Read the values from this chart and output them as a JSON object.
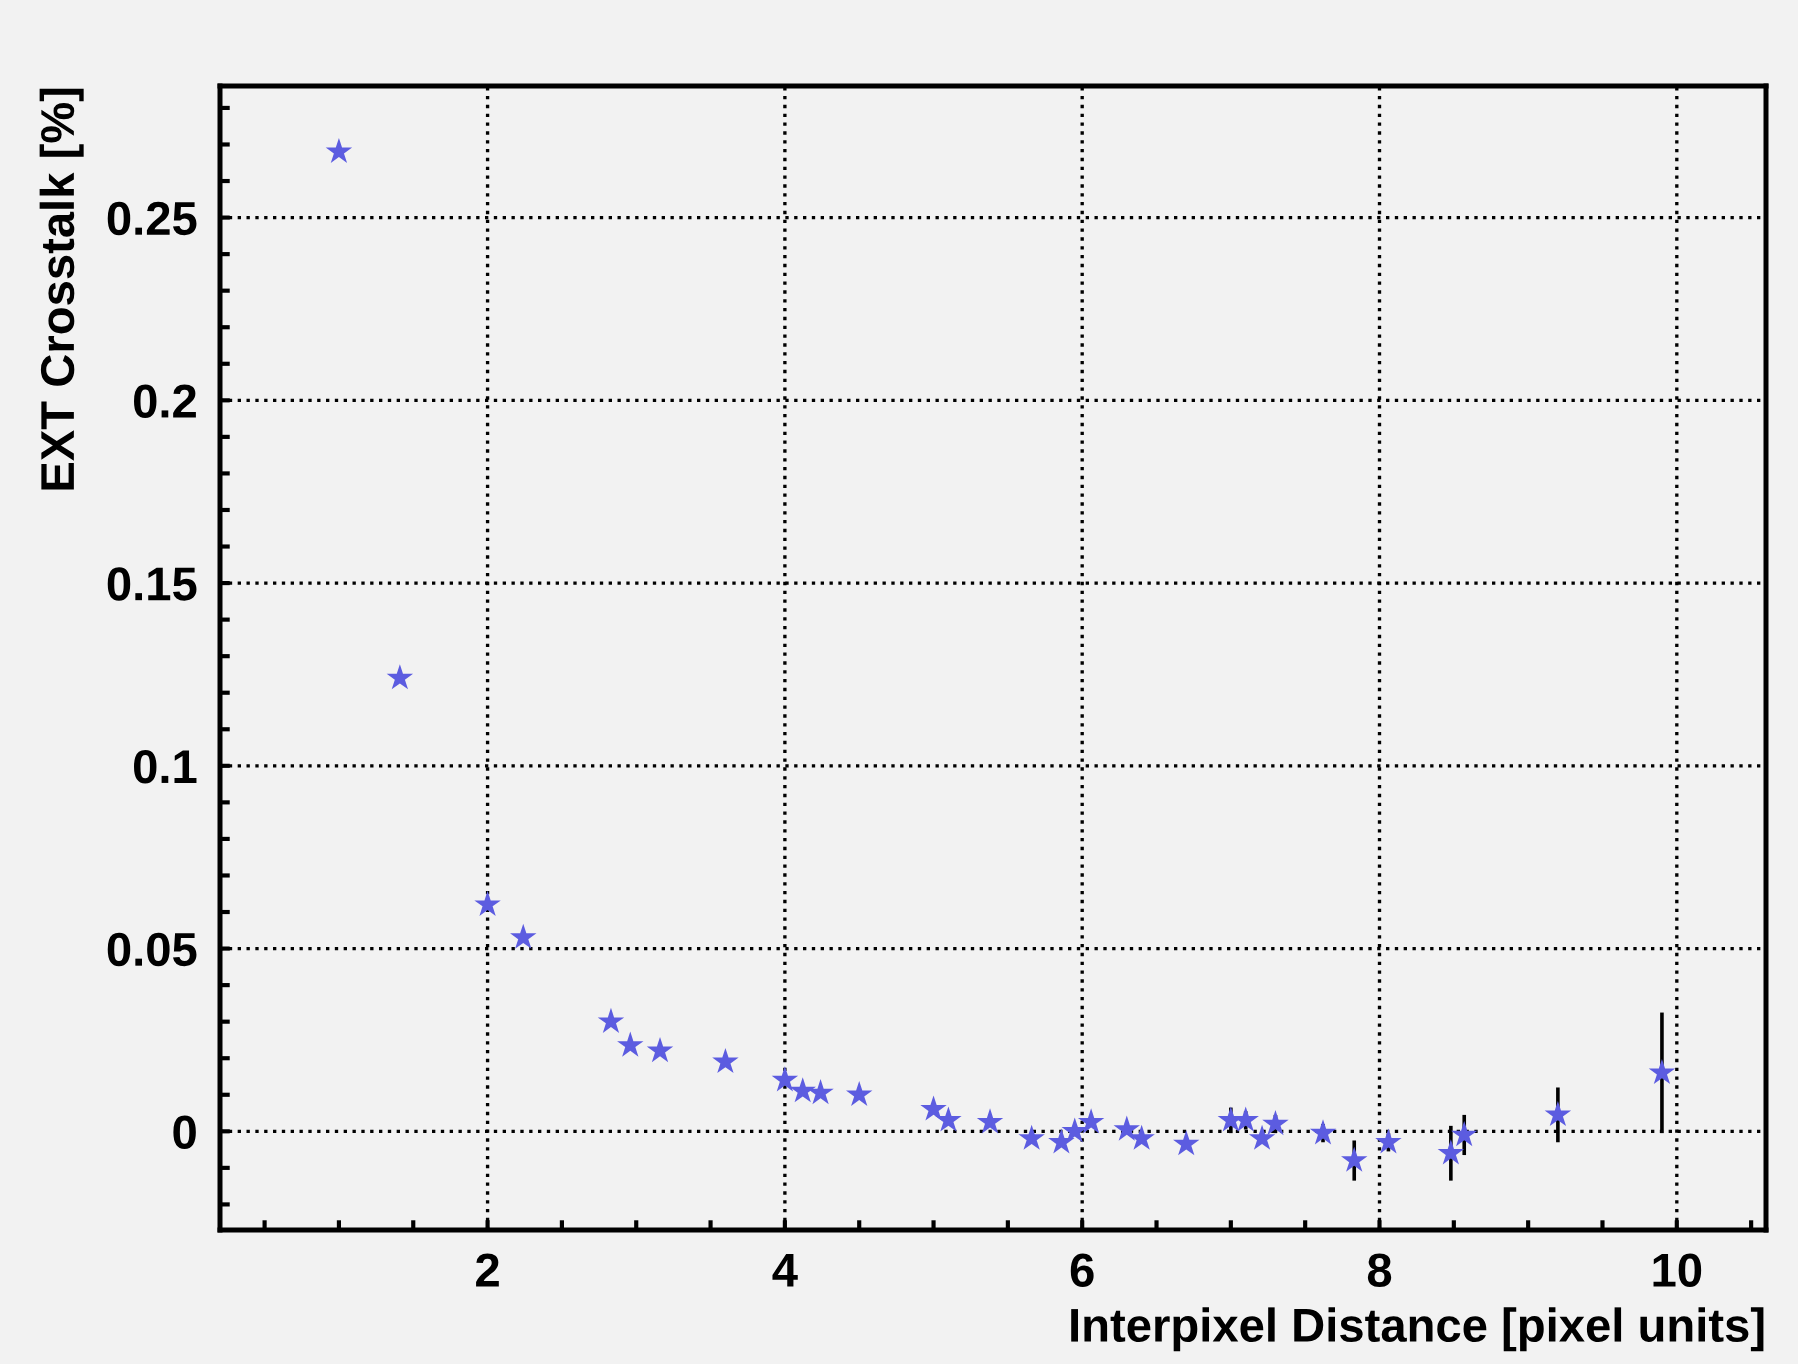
{
  "chart_data": {
    "type": "scatter",
    "xlabel": "Interpixel Distance [pixel units]",
    "ylabel": "EXT Crosstalk [%]",
    "x": [
      1.0,
      1.41,
      2.0,
      2.24,
      2.83,
      2.96,
      3.16,
      3.6,
      4.0,
      4.12,
      4.24,
      4.5,
      5.0,
      5.1,
      5.38,
      5.66,
      5.86,
      5.95,
      6.06,
      6.3,
      6.4,
      6.7,
      7.0,
      7.1,
      7.21,
      7.3,
      7.62,
      7.83,
      8.06,
      8.48,
      8.57,
      9.2,
      9.9
    ],
    "series": [
      {
        "color": "#5c5ce0",
        "values": [
          0.268,
          0.124,
          0.062,
          0.053,
          0.03,
          0.0235,
          0.022,
          0.019,
          0.014,
          0.011,
          0.0105,
          0.01,
          0.006,
          0.003,
          0.0025,
          -0.002,
          -0.003,
          0.0,
          0.0025,
          0.0005,
          -0.002,
          -0.0035,
          0.003,
          0.003,
          -0.002,
          0.002,
          -0.0005,
          -0.008,
          -0.003,
          -0.006,
          -0.001,
          0.0045,
          0.016
        ],
        "errors": [
          null,
          null,
          null,
          null,
          null,
          null,
          null,
          null,
          null,
          null,
          null,
          null,
          null,
          null,
          null,
          null,
          null,
          null,
          null,
          null,
          null,
          null,
          0.003,
          0.002,
          null,
          0.002,
          0.002,
          0.005,
          0.002,
          0.007,
          0.005,
          0.007,
          0.016
        ]
      }
    ],
    "xlim": [
      0.2,
      10.6
    ],
    "xticks": [
      {
        "value": 0.5,
        "label": null
      },
      {
        "value": 1,
        "label": null
      },
      {
        "value": 1.5,
        "label": null
      },
      2,
      {
        "value": 2.5,
        "label": null
      },
      {
        "value": 3,
        "label": null
      },
      {
        "value": 3.5,
        "label": null
      },
      4,
      {
        "value": 4.5,
        "label": null
      },
      {
        "value": 5,
        "label": null
      },
      {
        "value": 5.5,
        "label": null
      },
      6,
      {
        "value": 6.5,
        "label": null
      },
      {
        "value": 7,
        "label": null
      },
      {
        "value": 7.5,
        "label": null
      },
      8,
      {
        "value": 8.5,
        "label": null
      },
      {
        "value": 9,
        "label": null
      },
      {
        "value": 9.5,
        "label": null
      },
      10,
      {
        "value": 10.5,
        "label": null
      }
    ],
    "ylim": [
      -0.027,
      0.286
    ],
    "yticks": [
      {
        "value": -0.02,
        "label": null
      },
      {
        "value": -0.01,
        "label": null
      },
      0,
      {
        "value": 0.01,
        "label": null
      },
      {
        "value": 0.02,
        "label": null
      },
      {
        "value": 0.03,
        "label": null
      },
      {
        "value": 0.04,
        "label": null
      },
      0.05,
      {
        "value": 0.06,
        "label": null
      },
      {
        "value": 0.07,
        "label": null
      },
      {
        "value": 0.08,
        "label": null
      },
      {
        "value": 0.09,
        "label": null
      },
      0.1,
      {
        "value": 0.11,
        "label": null
      },
      {
        "value": 0.12,
        "label": null
      },
      {
        "value": 0.13,
        "label": null
      },
      {
        "value": 0.14,
        "label": null
      },
      0.15,
      {
        "value": 0.16,
        "label": null
      },
      {
        "value": 0.17,
        "label": null
      },
      {
        "value": 0.18,
        "label": null
      },
      {
        "value": 0.19,
        "label": null
      },
      0.2,
      {
        "value": 0.21,
        "label": null
      },
      {
        "value": 0.22,
        "label": null
      },
      {
        "value": 0.23,
        "label": null
      },
      {
        "value": 0.24,
        "label": null
      },
      0.25,
      {
        "value": 0.26,
        "label": null
      },
      {
        "value": 0.27,
        "label": null
      },
      {
        "value": 0.28,
        "label": null
      }
    ],
    "grid": true,
    "marker": "star"
  }
}
